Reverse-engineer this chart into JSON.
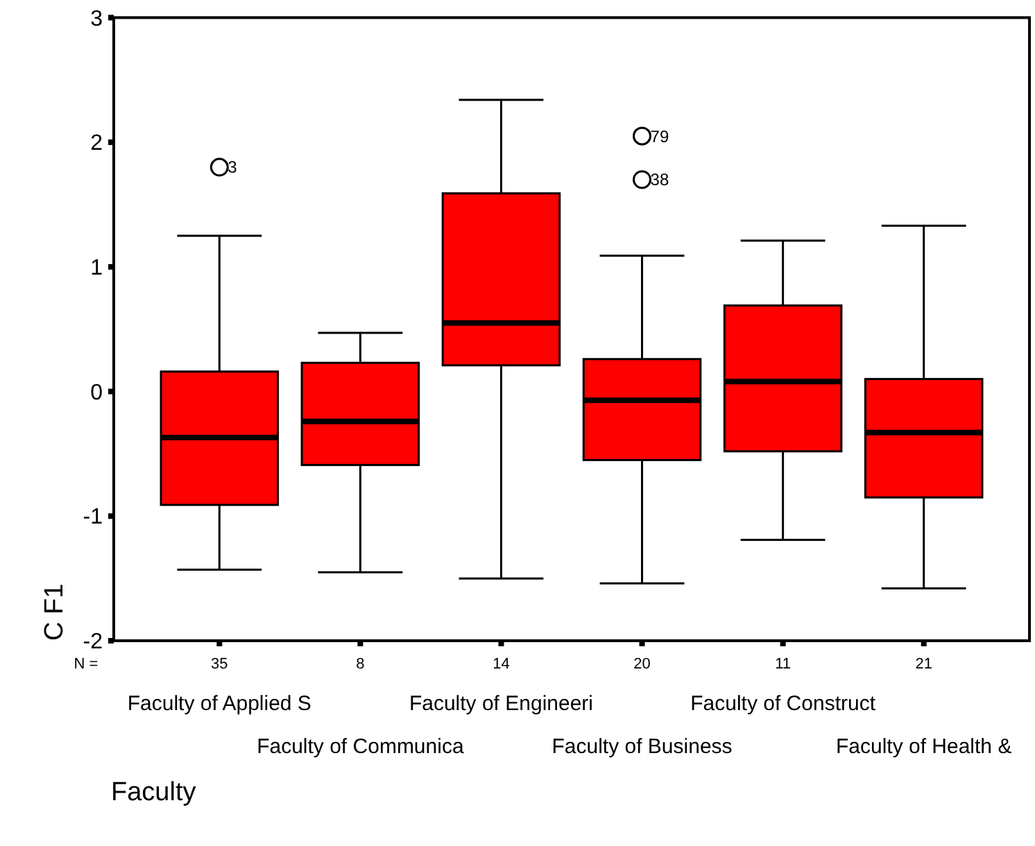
{
  "chart_data": {
    "type": "box",
    "xlabel": "Faculty",
    "ylabel": "C F1",
    "color": "#ff0000",
    "categories": [
      "Faculty of Applied S",
      "Faculty of Communica",
      "Faculty of Engineeri",
      "Faculty of Business",
      "Faculty of Construct",
      "Faculty of Health &"
    ],
    "boxes": [
      {
        "low": -1.43,
        "q1": -0.91,
        "median": -0.37,
        "q3": 0.16,
        "high": 1.25,
        "outliers": [
          1.8
        ]
      },
      {
        "low": -1.45,
        "q1": -0.59,
        "median": -0.24,
        "q3": 0.23,
        "high": 0.47
      },
      {
        "low": -1.5,
        "q1": 0.21,
        "median": 0.55,
        "q3": 1.59,
        "high": 2.34
      },
      {
        "low": -1.54,
        "q1": -0.55,
        "median": -0.07,
        "q3": 0.26,
        "high": 1.09,
        "outliers": [
          2.05,
          1.7
        ]
      },
      {
        "low": -1.19,
        "q1": -0.48,
        "median": 0.08,
        "q3": 0.69,
        "high": 1.21
      },
      {
        "low": -1.58,
        "q1": -0.85,
        "median": -0.33,
        "q3": 0.1,
        "high": 1.33
      }
    ],
    "ylim": [
      -2,
      3
    ],
    "yticks": [
      -2,
      -1,
      0,
      1,
      2,
      3
    ],
    "annotations": [
      "3",
      "79",
      "38",
      "N =",
      "35",
      "8",
      "14",
      "20",
      "11",
      "21"
    ]
  }
}
